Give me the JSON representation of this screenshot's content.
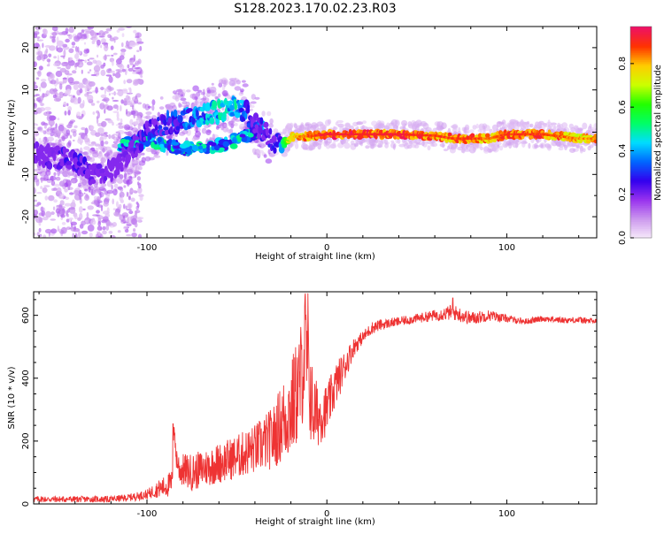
{
  "title": "S128.2023.170.02.23.R03",
  "chart_data": [
    {
      "type": "heatmap",
      "xlabel": "Height of straight line (km)",
      "ylabel": "Frequency (Hz)",
      "xlim": [
        -163,
        150
      ],
      "ylim": [
        -25,
        25
      ],
      "xticks": [
        -100,
        0,
        100
      ],
      "yticks": [
        -20,
        -10,
        0,
        10,
        20
      ],
      "grid": false,
      "colorbar": {
        "label": "Normalized spectral amplitude",
        "range": [
          0,
          0.97
        ],
        "ticks": [
          "0.0",
          "0.2",
          "0.4",
          "0.6",
          "0.8"
        ],
        "colormap": [
          "#f8ecfb",
          "#cc99ee",
          "#9933ee",
          "#3300ee",
          "#0066ff",
          "#00ddff",
          "#00ff66",
          "#22ff00",
          "#ccff00",
          "#ffcc00",
          "#ff3300",
          "#ee1166"
        ]
      },
      "ridge": {
        "x": [
          -163,
          -150,
          -140,
          -130,
          -120,
          -110,
          -100,
          -90,
          -80,
          -70,
          -60,
          -50,
          -45,
          -40,
          -35,
          -30,
          -25,
          -20,
          -10,
          0,
          20,
          40,
          60,
          70,
          80,
          90,
          100,
          120,
          140,
          150
        ],
        "freq": [
          -5,
          -6,
          -7,
          -10,
          -9,
          -5,
          0,
          2,
          3,
          4,
          5,
          6,
          5,
          2,
          0,
          -2,
          -3,
          -1,
          -1,
          -0.5,
          -0.5,
          -0.5,
          -0.8,
          -1.5,
          -1.5,
          -1.5,
          -0.5,
          -0.5,
          -1.5,
          -1.5
        ],
        "amplitude": [
          0.3,
          0.35,
          0.38,
          0.35,
          0.3,
          0.3,
          0.4,
          0.45,
          0.5,
          0.55,
          0.6,
          0.6,
          0.5,
          0.4,
          0.35,
          0.4,
          0.5,
          0.8,
          0.9,
          0.95,
          0.95,
          0.95,
          0.92,
          0.9,
          0.92,
          0.88,
          0.92,
          0.92,
          0.85,
          0.85
        ]
      },
      "secondary_ridge": {
        "x": [
          -115,
          -100,
          -90,
          -80,
          -70,
          -60,
          -50,
          -40,
          -35
        ],
        "freq": [
          -3,
          -2,
          -3,
          -4,
          -4,
          -3,
          -2,
          0,
          2
        ]
      }
    },
    {
      "type": "line",
      "xlabel": "Height of straight line (km)",
      "ylabel": "SNR (10 * v/v)",
      "xlim": [
        -163,
        150
      ],
      "ylim": [
        0,
        675
      ],
      "xticks": [
        -100,
        0,
        100
      ],
      "yticks": [
        0,
        200,
        400,
        600
      ],
      "grid": false,
      "series": [
        {
          "color": "#ee3333",
          "x": [
            -163,
            -140,
            -120,
            -110,
            -100,
            -95,
            -90,
            -86,
            -85,
            -84,
            -82,
            -75,
            -70,
            -60,
            -50,
            -40,
            -30,
            -25,
            -20,
            -15,
            -12,
            -10,
            -8,
            -5,
            0,
            5,
            10,
            15,
            20,
            25,
            30,
            35,
            40,
            50,
            60,
            70,
            80,
            90,
            100,
            110,
            120,
            130,
            140,
            150
          ],
          "values": [
            15,
            15,
            15,
            20,
            30,
            45,
            55,
            65,
            255,
            160,
            110,
            100,
            110,
            130,
            150,
            175,
            210,
            260,
            300,
            380,
            500,
            400,
            300,
            280,
            300,
            380,
            440,
            500,
            530,
            560,
            570,
            575,
            580,
            590,
            600,
            610,
            590,
            600,
            590,
            580,
            590,
            585,
            585,
            580
          ],
          "spread": [
            10,
            10,
            10,
            12,
            15,
            25,
            35,
            45,
            0,
            40,
            50,
            60,
            60,
            65,
            70,
            80,
            100,
            130,
            160,
            180,
            200,
            180,
            140,
            100,
            80,
            70,
            50,
            30,
            20,
            20,
            18,
            15,
            15,
            15,
            18,
            25,
            22,
            18,
            12,
            10,
            10,
            10,
            10,
            10
          ],
          "peaks": [
            {
              "x": -85.5,
              "y": 255
            },
            {
              "x": -12,
              "y": 670
            },
            {
              "x": -10.5,
              "y": 670
            },
            {
              "x": 70,
              "y": 655
            }
          ]
        }
      ]
    }
  ]
}
